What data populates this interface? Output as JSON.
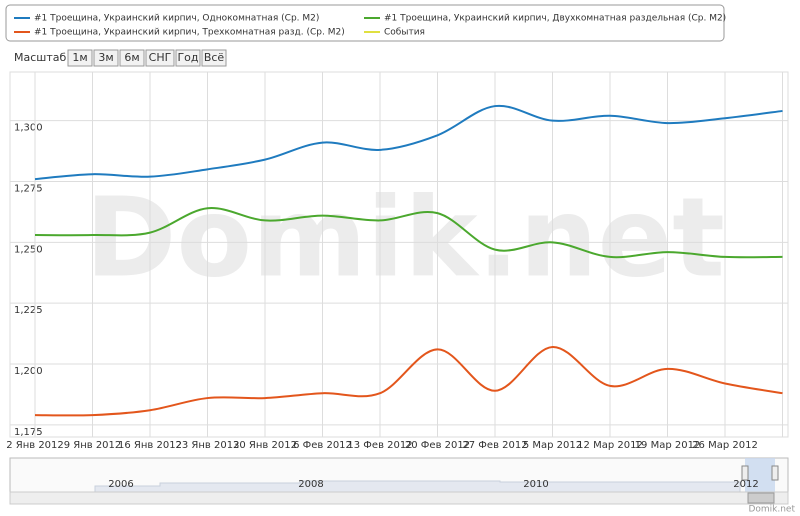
{
  "chart_data": {
    "type": "line",
    "watermark": "Domik.net",
    "credits": "Domik.net",
    "range_selector": {
      "label": "Масштаб",
      "buttons": [
        "1м",
        "3м",
        "6м",
        "СНГ",
        "Год",
        "Всё"
      ]
    },
    "categories": [
      "2 Янв 2012",
      "9 Янв 2012",
      "16 Янв 2012",
      "23 Янв 2012",
      "30 Янв 2012",
      "6 Фев 2012",
      "13 Фев 2012",
      "20 Фев 2012",
      "27 Фев 2012",
      "5 Мар 2012",
      "12 Мар 2012",
      "19 Мар 2012",
      "26 Мар 2012",
      null
    ],
    "series": [
      {
        "name": "#1 Троещина, Украинский кирпич, Однокомнатная (Ср. М2)",
        "color": "#1f7bbf",
        "values": [
          1276,
          1278,
          1277,
          1280,
          1284,
          1291,
          1288,
          1294,
          1306,
          1300,
          1302,
          1299,
          1301,
          1304
        ]
      },
      {
        "name": "#1 Троещина, Украинский кирпич, Двухкомнатная раздельная (Ср. М2)",
        "color": "#4ba82e",
        "values": [
          1253,
          1253,
          1254,
          1264,
          1259,
          1261,
          1259,
          1262,
          1247,
          1250,
          1244,
          1246,
          1244,
          1244
        ]
      },
      {
        "name": "#1 Троещина, Украинский кирпич, Трехкомнатная разд. (Ср. М2)",
        "color": "#e3561c",
        "values": [
          1179,
          1179,
          1181,
          1186,
          1186,
          1188,
          1188,
          1206,
          1189,
          1207,
          1191,
          1198,
          1192,
          1188
        ]
      }
    ],
    "events": {
      "name": "События",
      "color": "#e0e040"
    },
    "ylim": [
      1170,
      1320
    ],
    "yticks": [
      {
        "value": 1175,
        "label": "1,175"
      },
      {
        "value": 1200,
        "label": "1,200"
      },
      {
        "value": 1225,
        "label": "1,225"
      },
      {
        "value": 1250,
        "label": "1,250"
      },
      {
        "value": 1275,
        "label": "1,275"
      },
      {
        "value": 1300,
        "label": "1,300"
      }
    ],
    "grid": true,
    "navigator": {
      "labels": [
        "2006",
        "2008",
        "2010",
        "2012"
      ]
    }
  }
}
